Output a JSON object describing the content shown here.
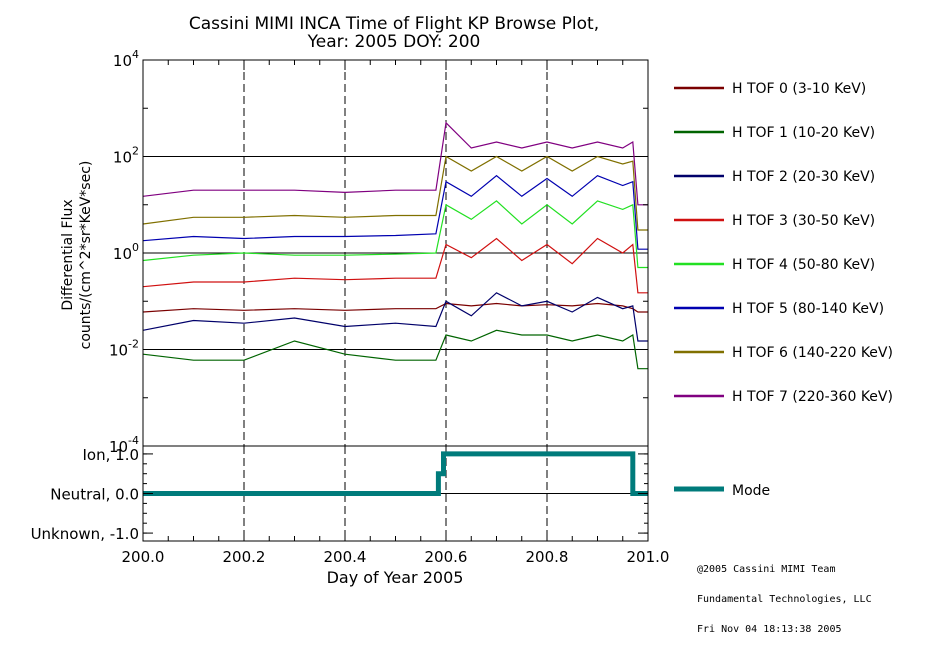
{
  "title_line1": "Cassini MIMI INCA Time of Flight KP Browse Plot,",
  "title_line2": "Year: 2005 DOY: 200",
  "credits": [
    "@2005 Cassini MIMI Team",
    "Fundamental Technologies, LLC",
    "Fri Nov 04 18:13:38 2005"
  ],
  "chart_data": [
    {
      "type": "line",
      "title": "Cassini MIMI INCA Time of Flight KP Browse Plot, Year: 2005 DOY: 200",
      "ylabel_line1": "Differential Flux",
      "ylabel_line2": "counts/(cm^2*sr*KeV*sec)",
      "y_scale": "log",
      "ylim": [
        0.0001,
        10000
      ],
      "xlim": [
        200.0,
        201.0
      ],
      "y_ticks": [
        {
          "value": 0.0001,
          "base": "10",
          "exp": "-4"
        },
        {
          "value": 0.01,
          "base": "10",
          "exp": "-2"
        },
        {
          "value": 1,
          "base": "10",
          "exp": "0"
        },
        {
          "value": 100,
          "base": "10",
          "exp": "2"
        },
        {
          "value": 10000,
          "base": "10",
          "exp": "4"
        }
      ],
      "grid": "horizontal solid at decades, vertical dashed at x ticks",
      "legend_position": "right",
      "series": [
        {
          "name": "H TOF 0 (3-10 KeV)",
          "color": "#7a0000",
          "x": [
            200.0,
            200.1,
            200.2,
            200.3,
            200.4,
            200.5,
            200.58,
            200.6,
            200.65,
            200.7,
            200.75,
            200.8,
            200.85,
            200.9,
            200.95,
            200.97,
            200.98,
            201.0
          ],
          "y": [
            0.06,
            0.07,
            0.065,
            0.07,
            0.065,
            0.07,
            0.07,
            0.09,
            0.08,
            0.09,
            0.08,
            0.085,
            0.08,
            0.09,
            0.08,
            0.07,
            0.06,
            0.06
          ]
        },
        {
          "name": "H TOF 1 (10-20 KeV)",
          "color": "#006400",
          "x": [
            200.0,
            200.1,
            200.2,
            200.3,
            200.4,
            200.5,
            200.58,
            200.6,
            200.65,
            200.7,
            200.75,
            200.8,
            200.85,
            200.9,
            200.95,
            200.97,
            200.98,
            201.0
          ],
          "y": [
            0.008,
            0.006,
            0.006,
            0.015,
            0.008,
            0.006,
            0.006,
            0.02,
            0.015,
            0.025,
            0.02,
            0.02,
            0.015,
            0.02,
            0.015,
            0.02,
            0.004,
            0.004
          ]
        },
        {
          "name": "H TOF 2 (20-30 KeV)",
          "color": "#00006a",
          "x": [
            200.0,
            200.1,
            200.2,
            200.3,
            200.4,
            200.5,
            200.58,
            200.6,
            200.65,
            200.7,
            200.75,
            200.8,
            200.85,
            200.9,
            200.95,
            200.97,
            200.98,
            201.0
          ],
          "y": [
            0.025,
            0.04,
            0.035,
            0.045,
            0.03,
            0.035,
            0.03,
            0.1,
            0.05,
            0.15,
            0.08,
            0.1,
            0.06,
            0.12,
            0.07,
            0.08,
            0.015,
            0.015
          ]
        },
        {
          "name": "H TOF 3 (30-50 KeV)",
          "color": "#d01010",
          "x": [
            200.0,
            200.1,
            200.2,
            200.3,
            200.4,
            200.5,
            200.58,
            200.6,
            200.65,
            200.7,
            200.75,
            200.8,
            200.85,
            200.9,
            200.95,
            200.97,
            200.98,
            201.0
          ],
          "y": [
            0.2,
            0.25,
            0.25,
            0.3,
            0.28,
            0.3,
            0.3,
            1.5,
            0.8,
            2.0,
            0.7,
            1.5,
            0.6,
            2.0,
            1.0,
            1.5,
            0.15,
            0.15
          ]
        },
        {
          "name": "H TOF 4 (50-80 KeV)",
          "color": "#22e022",
          "x": [
            200.0,
            200.1,
            200.2,
            200.3,
            200.4,
            200.5,
            200.58,
            200.6,
            200.65,
            200.7,
            200.75,
            200.8,
            200.85,
            200.9,
            200.95,
            200.97,
            200.98,
            201.0
          ],
          "y": [
            0.7,
            0.9,
            1.0,
            0.9,
            0.9,
            0.95,
            1.0,
            10,
            5,
            12,
            4,
            10,
            4,
            12,
            8,
            10,
            0.5,
            0.5
          ]
        },
        {
          "name": "H TOF 5 (80-140 KeV)",
          "color": "#0000b0",
          "x": [
            200.0,
            200.1,
            200.2,
            200.3,
            200.4,
            200.5,
            200.58,
            200.6,
            200.65,
            200.7,
            200.75,
            200.8,
            200.85,
            200.9,
            200.95,
            200.97,
            200.98,
            201.0
          ],
          "y": [
            1.8,
            2.2,
            2.0,
            2.2,
            2.2,
            2.3,
            2.5,
            30,
            15,
            40,
            15,
            35,
            15,
            40,
            25,
            30,
            1.2,
            1.2
          ]
        },
        {
          "name": "H TOF 6 (140-220 KeV)",
          "color": "#807000",
          "x": [
            200.0,
            200.1,
            200.2,
            200.3,
            200.4,
            200.5,
            200.58,
            200.6,
            200.65,
            200.7,
            200.75,
            200.8,
            200.85,
            200.9,
            200.95,
            200.97,
            200.98,
            201.0
          ],
          "y": [
            4,
            5.5,
            5.5,
            6,
            5.5,
            6,
            6,
            100,
            50,
            100,
            50,
            100,
            50,
            100,
            70,
            80,
            3,
            3
          ]
        },
        {
          "name": "H TOF 7 (220-360 KeV)",
          "color": "#800080",
          "x": [
            200.0,
            200.1,
            200.2,
            200.3,
            200.4,
            200.5,
            200.58,
            200.6,
            200.65,
            200.7,
            200.75,
            200.8,
            200.85,
            200.9,
            200.95,
            200.97,
            200.98,
            201.0
          ],
          "y": [
            15,
            20,
            20,
            20,
            18,
            20,
            20,
            500,
            150,
            200,
            150,
            200,
            150,
            200,
            150,
            200,
            10,
            10
          ]
        }
      ]
    },
    {
      "type": "line",
      "xlabel": "Day of Year 2005",
      "xlim": [
        200.0,
        201.0
      ],
      "ylim": [
        -1.2,
        1.2
      ],
      "x_ticks": [
        "200.0",
        "200.2",
        "200.4",
        "200.6",
        "200.8",
        "201.0"
      ],
      "x_tick_values": [
        200.0,
        200.2,
        200.4,
        200.6,
        200.8,
        201.0
      ],
      "y_ticks": [
        {
          "value": 1.0,
          "label": "Ion, 1.0"
        },
        {
          "value": 0.0,
          "label": "Neutral, 0.0"
        },
        {
          "value": -1.0,
          "label": "Unknown, -1.0"
        }
      ],
      "series": [
        {
          "name": "Mode",
          "color": "#007b7b",
          "x": [
            200.0,
            200.585,
            200.585,
            200.595,
            200.595,
            200.97,
            200.97,
            201.0
          ],
          "y": [
            0,
            0,
            0.5,
            0.5,
            1,
            1,
            0,
            0
          ]
        }
      ]
    }
  ]
}
